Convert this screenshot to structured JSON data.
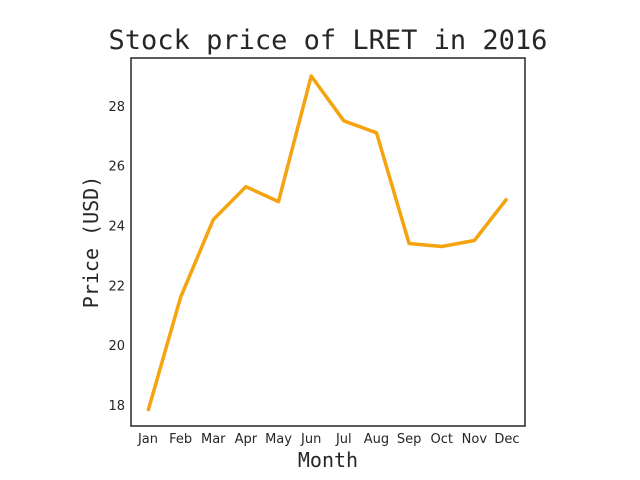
{
  "chart_data": {
    "type": "line",
    "title": "Stock price of LRET in 2016",
    "xlabel": "Month",
    "ylabel": "Price (USD)",
    "categories": [
      "Jan",
      "Feb",
      "Mar",
      "Apr",
      "May",
      "Jun",
      "Jul",
      "Aug",
      "Sep",
      "Oct",
      "Nov",
      "Dec"
    ],
    "series": [
      {
        "values": [
          17.8,
          21.6,
          24.2,
          25.3,
          24.8,
          29.0,
          27.5,
          27.1,
          23.4,
          23.3,
          23.5,
          24.9
        ],
        "color": "#f5a30f"
      }
    ],
    "yticks": [
      18,
      20,
      22,
      24,
      26,
      28
    ],
    "ylim": [
      17.3,
      29.6
    ],
    "grid": false,
    "legend": "none"
  }
}
